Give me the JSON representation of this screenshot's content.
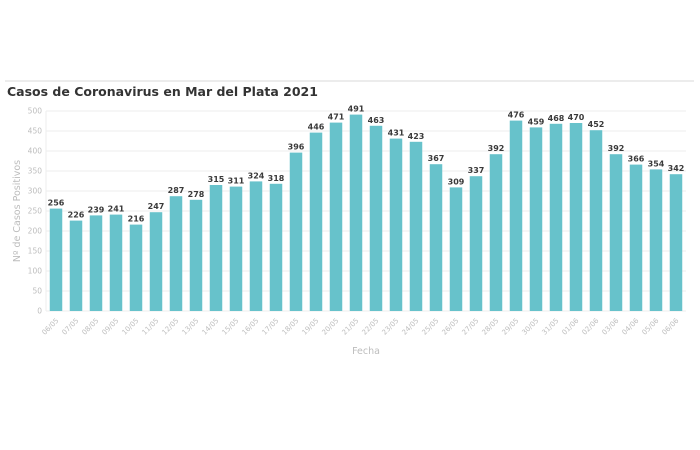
{
  "chart_data": {
    "type": "bar",
    "title": "Casos de Coronavirus en Mar del Plata 2021",
    "xlabel": "Fecha",
    "ylabel": "Nº de Casos Positivos",
    "ylim": [
      0,
      500
    ],
    "yticks": [
      0,
      50,
      100,
      150,
      200,
      250,
      300,
      350,
      400,
      450,
      500
    ],
    "grid": true,
    "bar_color": "#67c2cb",
    "categories": [
      "06/05",
      "07/05",
      "08/05",
      "09/05",
      "10/05",
      "11/05",
      "12/05",
      "13/05",
      "14/05",
      "15/05",
      "16/05",
      "17/05",
      "18/05",
      "19/05",
      "20/05",
      "21/05",
      "22/05",
      "23/05",
      "24/05",
      "25/05",
      "26/05",
      "27/05",
      "28/05",
      "29/05",
      "30/05",
      "31/05",
      "01/06",
      "02/06",
      "03/06",
      "04/06",
      "05/06",
      "06/06"
    ],
    "values": [
      256,
      226,
      239,
      241,
      216,
      247,
      287,
      278,
      315,
      311,
      324,
      318,
      396,
      446,
      471,
      491,
      463,
      431,
      423,
      367,
      309,
      337,
      392,
      476,
      459,
      468,
      470,
      452,
      392,
      366,
      354,
      342
    ]
  }
}
